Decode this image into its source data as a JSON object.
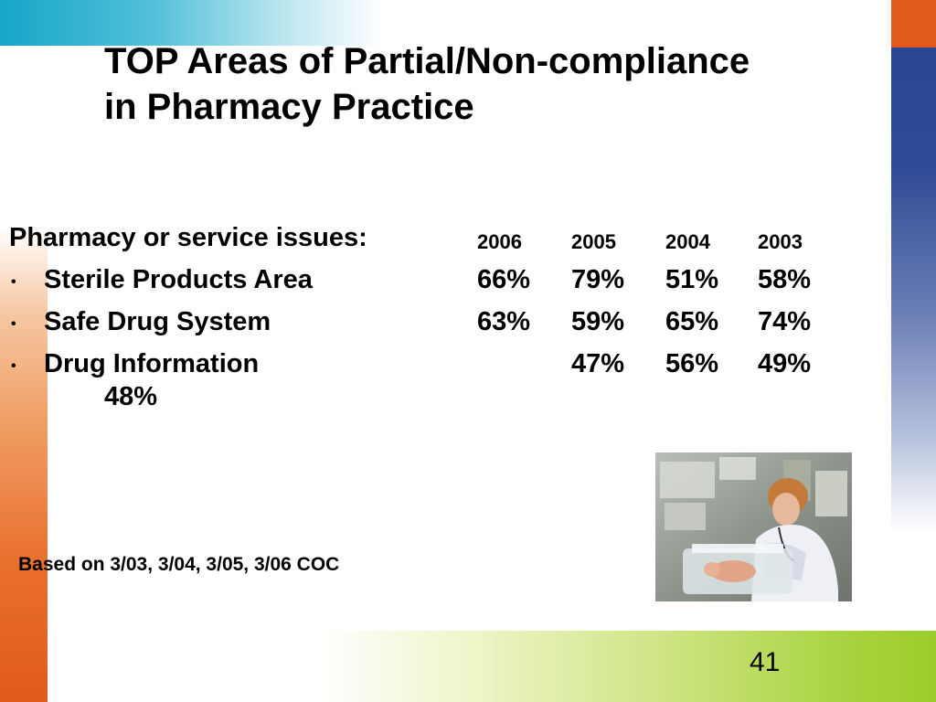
{
  "slide": {
    "title_line1": "TOP Areas of Partial/Non-compliance",
    "title_line2": "in Pharmacy Practice",
    "header": {
      "label": "Pharmacy or service issues:",
      "years": [
        "2006",
        "2005",
        "2004",
        "2003"
      ]
    },
    "rows": [
      {
        "bullet": "•",
        "label": "Sterile Products Area",
        "values": [
          "66%",
          "79%",
          "51%",
          "58%"
        ]
      },
      {
        "bullet": "•",
        "label": "Safe Drug System",
        "values": [
          "63%",
          "59%",
          "65%",
          "74%"
        ]
      },
      {
        "bullet": "•",
        "label": "Drug Information",
        "values": [
          "47%",
          "56%",
          "49%",
          "48%"
        ]
      }
    ],
    "note": "Based on 3/03, 3/04, 3/05, 3/06 COC",
    "page_number": "41",
    "photo": "nurse-with-infant-in-incubator-photo"
  }
}
